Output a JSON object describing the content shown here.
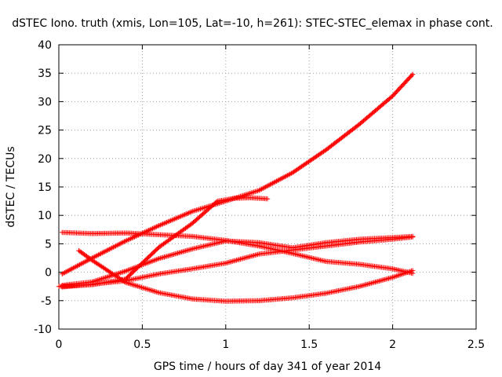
{
  "chart_data": {
    "type": "scatter",
    "title": "dSTEC Iono. truth (xmis, Lon=105, Lat=-10, h=261): STEC-STEC_elemax in phase cont.",
    "xlabel": "GPS time / hours of day 341 of year 2014",
    "ylabel": "dSTEC  / TECUs",
    "xlim": [
      0,
      2.5
    ],
    "ylim": [
      -10,
      40
    ],
    "xticks": [
      0,
      0.5,
      1,
      1.5,
      2,
      2.5
    ],
    "xtick_labels": [
      "0",
      "0.5",
      "1",
      "1.5",
      "2",
      "2.5"
    ],
    "yticks": [
      -10,
      -5,
      0,
      5,
      10,
      15,
      20,
      25,
      30,
      35,
      40
    ],
    "ytick_labels": [
      "-10",
      "-5",
      "0",
      "5",
      "10",
      "15",
      "20",
      "25",
      "30",
      "35",
      "40"
    ],
    "grid": true,
    "marker": "plus",
    "color": "#ff0000",
    "series": [
      {
        "x": [
          0.02,
          0.2,
          0.4,
          0.6,
          0.8,
          1.0,
          1.2,
          1.4,
          1.6,
          1.8,
          2.0,
          2.12
        ],
        "y": [
          -0.3,
          2.5,
          5.5,
          8.2,
          10.7,
          12.5,
          14.4,
          17.5,
          21.5,
          26.0,
          31.0,
          34.8
        ]
      },
      {
        "x": [
          0.02,
          0.2,
          0.4,
          0.6,
          0.8,
          1.0,
          1.2,
          1.4,
          1.6,
          1.8,
          2.0,
          2.12
        ],
        "y": [
          7.0,
          6.8,
          6.9,
          6.6,
          6.3,
          5.6,
          4.6,
          3.3,
          1.9,
          1.4,
          0.6,
          -0.2
        ]
      },
      {
        "x": [
          0.02,
          0.2,
          0.4,
          0.6,
          0.8,
          1.0,
          1.2,
          1.4,
          1.6,
          1.8,
          2.0,
          2.12
        ],
        "y": [
          -2.3,
          -1.7,
          0.2,
          2.4,
          4.1,
          5.5,
          5.2,
          4.3,
          5.2,
          5.8,
          6.1,
          6.3
        ]
      },
      {
        "x": [
          0.02,
          0.2,
          0.4,
          0.6,
          0.8,
          1.0,
          1.2,
          1.4,
          1.6,
          1.8,
          2.0,
          2.12
        ],
        "y": [
          -2.6,
          -2.1,
          -1.5,
          -0.3,
          0.6,
          1.6,
          3.2,
          3.9,
          4.6,
          5.3,
          5.8,
          6.2
        ]
      },
      {
        "x": [
          0.12,
          0.2,
          0.4,
          0.6,
          0.8,
          1.0,
          1.2,
          1.4,
          1.6,
          1.8,
          2.0,
          2.12
        ],
        "y": [
          3.8,
          2.1,
          -1.8,
          -3.6,
          -4.7,
          -5.1,
          -5.0,
          -4.5,
          -3.7,
          -2.5,
          -0.9,
          0.3
        ]
      },
      {
        "x": [
          0.0,
          0.2,
          0.4,
          0.6,
          0.8,
          0.95,
          1.05,
          1.15,
          1.25
        ],
        "y": [
          -2.5,
          -2.2,
          -1.2,
          4.4,
          8.6,
          12.5,
          13.0,
          13.1,
          12.9
        ]
      }
    ]
  }
}
